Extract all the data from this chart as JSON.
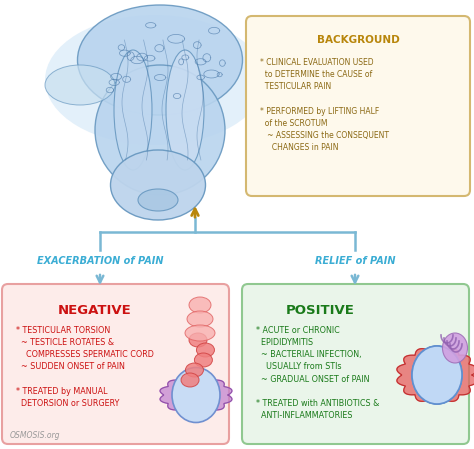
{
  "bg_color": "#ffffff",
  "title_bg_color": "#fef9ec",
  "title_border_color": "#d4b870",
  "neg_box_color": "#fdecea",
  "neg_border_color": "#e8a0a0",
  "pos_box_color": "#eaf5ea",
  "pos_border_color": "#90c890",
  "background_title": "BACKGROUND",
  "background_title_color": "#b8860b",
  "background_text_color": "#8b6914",
  "left_label": "EXACERBATION of PAIN",
  "right_label": "RELIEF of PAIN",
  "label_color": "#3badd4",
  "neg_title": "NEGATIVE",
  "neg_title_color": "#cc1111",
  "neg_text_color": "#cc1111",
  "pos_title": "POSITIVE",
  "pos_title_color": "#1a7a1a",
  "pos_text_color": "#1a7a1a",
  "watermark": "OSMOSIS.org",
  "arrow_color": "#7ab8d4",
  "brown_arrow_color": "#b8860b",
  "scrotum_outer_color": "#cce0f5",
  "scrotum_body_color": "#b8d4ee",
  "scrotum_edge_color": "#6898c0",
  "scrotum_line_color": "#4a78a8"
}
